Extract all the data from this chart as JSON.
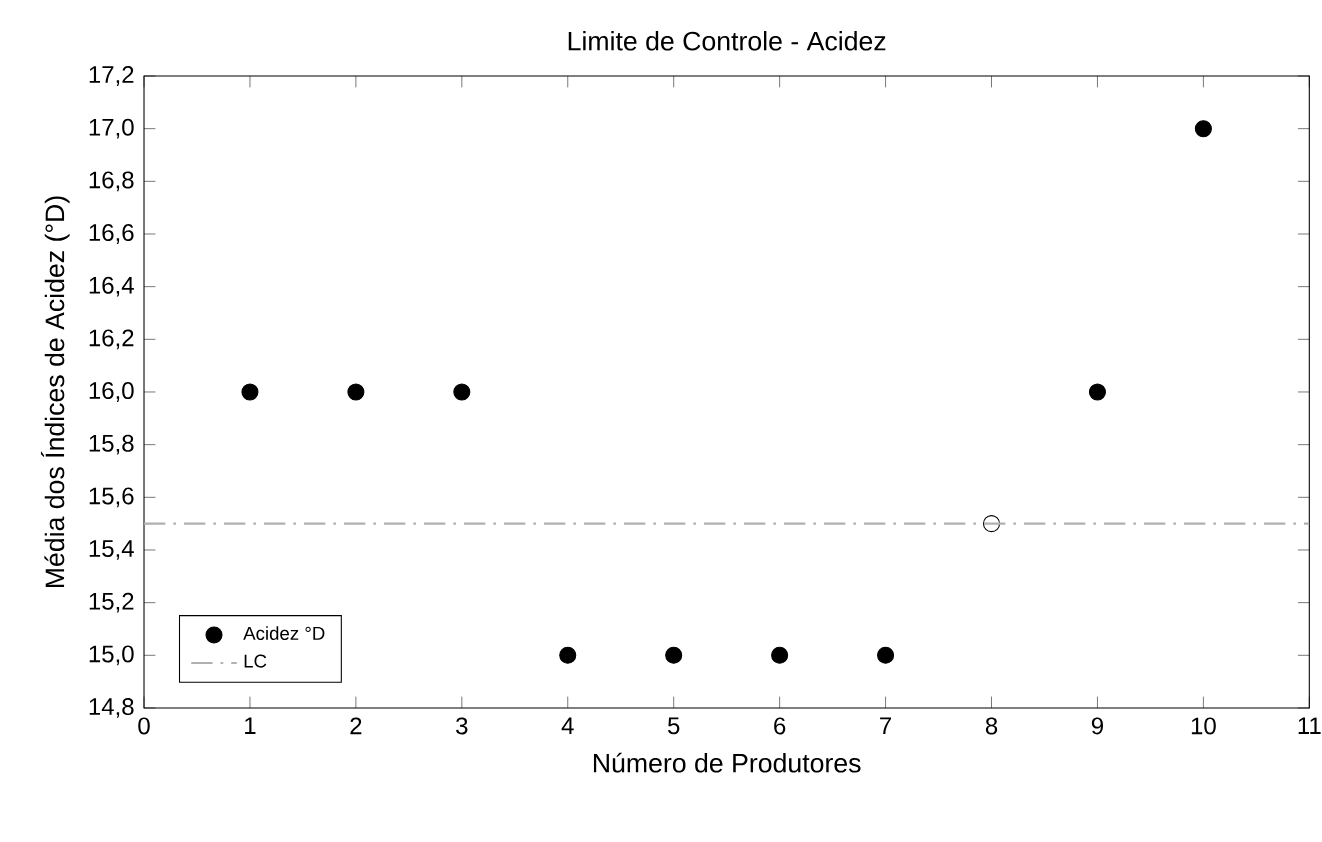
{
  "chart_data": {
    "type": "scatter",
    "title": "Limite de Controle - Acidez",
    "xlabel": "Número de Produtores",
    "ylabel": "Média dos Índices de Acidez (°D)",
    "x": [
      1,
      2,
      3,
      4,
      5,
      6,
      7,
      8,
      9,
      10
    ],
    "series": [
      {
        "name": "Acidez °D",
        "color": "#000000",
        "colors": [
          "#000000",
          "#000000",
          "#000000",
          "#000000",
          "#000000",
          "#000000",
          "#000000",
          "#ffffff",
          "#000000",
          "#000000"
        ],
        "values": [
          16.0,
          16.0,
          16.0,
          15.0,
          15.0,
          15.0,
          15.0,
          15.5,
          16.0,
          17.0
        ]
      }
    ],
    "marker": "circle",
    "legend": "bottom left",
    "grid": false,
    "xlim": [
      0,
      11
    ],
    "xticks": [
      0,
      1,
      2,
      3,
      4,
      5,
      6,
      7,
      8,
      9,
      10,
      11
    ],
    "ylim": [
      14.8,
      17.2
    ],
    "yticks": [
      {
        "value": 14.8,
        "label": "14,8"
      },
      {
        "value": 15.0,
        "label": "15,0"
      },
      {
        "value": 15.2,
        "label": "15,2"
      },
      {
        "value": 15.4,
        "label": "15,4"
      },
      {
        "value": 15.6,
        "label": "15,6"
      },
      {
        "value": 15.8,
        "label": "15,8"
      },
      {
        "value": 16.0,
        "label": "16,0"
      },
      {
        "value": 16.2,
        "label": "16,2"
      },
      {
        "value": 16.4,
        "label": "16,4"
      },
      {
        "value": 16.6,
        "label": "16,6"
      },
      {
        "value": 16.8,
        "label": "16,8"
      },
      {
        "value": 17.0,
        "label": "17,0"
      },
      {
        "value": 17.2,
        "label": "17,2"
      }
    ],
    "ref_lines": [
      {
        "axis": "y",
        "value": 15.5,
        "label": "LC",
        "color": "#b0b0b0"
      }
    ]
  }
}
